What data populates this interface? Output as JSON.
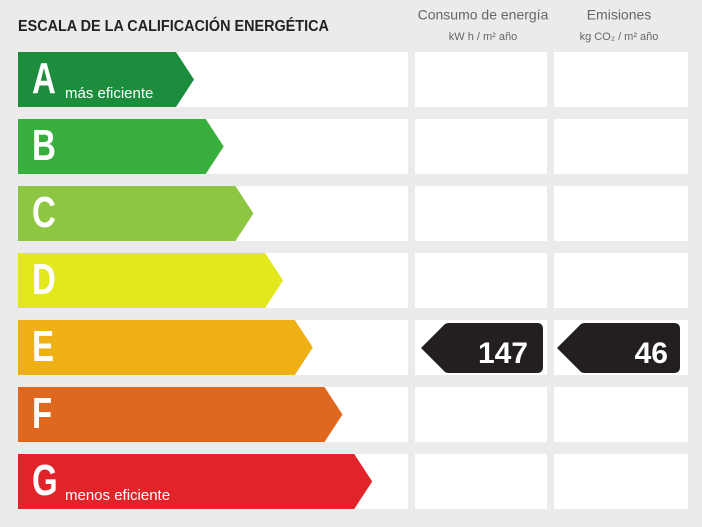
{
  "title": "ESCALA DE LA CALIFICACIÓN ENERGÉTICA",
  "columns": [
    {
      "title": "Consumo de energía",
      "unit": "kW h / m² año"
    },
    {
      "title": "Emisiones",
      "unit": "kg CO₂ / m² año"
    }
  ],
  "rows": [
    {
      "letter": "A",
      "note": "más eficiente",
      "color": "#1b8d3d"
    },
    {
      "letter": "B",
      "color": "#38ae3c"
    },
    {
      "letter": "C",
      "color": "#8dc641"
    },
    {
      "letter": "D",
      "color": "#e3e81c"
    },
    {
      "letter": "E",
      "color": "#efb016",
      "consumption": 147,
      "emissions": 46
    },
    {
      "letter": "F",
      "color": "#df671f"
    },
    {
      "letter": "G",
      "note": "menos eficiente",
      "color": "#e1232a"
    }
  ]
}
